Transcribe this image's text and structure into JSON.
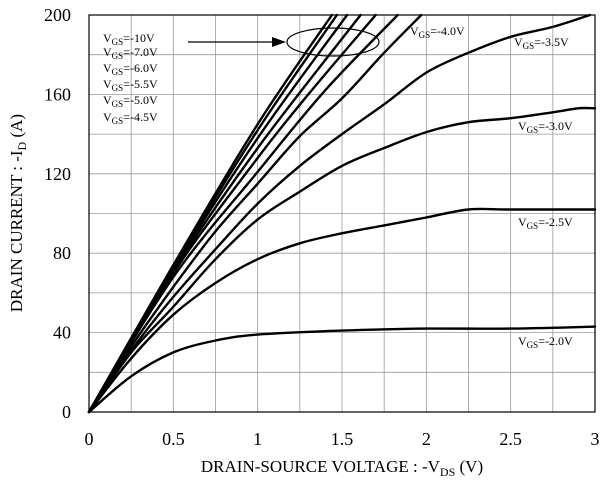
{
  "chart_data": {
    "type": "line",
    "title": "",
    "xlabel": "DRAIN-SOURCE VOLTAGE : -V",
    "xlabel_sub": "DS",
    "xlabel_unit": " (V)",
    "ylabel": "DRAIN CURRENT : -I",
    "ylabel_sub": "D",
    "ylabel_unit": " (A)",
    "xlim": [
      0,
      3
    ],
    "ylim": [
      0,
      200
    ],
    "x_ticks": [
      "0",
      "0.5",
      "1",
      "1.5",
      "2",
      "2.5",
      "3"
    ],
    "y_ticks": [
      "0",
      "40",
      "80",
      "120",
      "160",
      "200"
    ],
    "grid": true,
    "gridlines_x": [
      0.25,
      0.5,
      0.75,
      1,
      1.25,
      1.5,
      1.75,
      2,
      2.25,
      2.5,
      2.75
    ],
    "gridlines_y": [
      20,
      40,
      60,
      80,
      100,
      120,
      140,
      160,
      180
    ],
    "series": [
      {
        "name": "VGS=-10V",
        "x": [
          0,
          0.5,
          1,
          1.44
        ],
        "y": [
          0,
          74,
          145,
          200
        ]
      },
      {
        "name": "VGS=-7.0V",
        "x": [
          0,
          0.5,
          1,
          1.47
        ],
        "y": [
          0,
          73,
          142,
          200
        ]
      },
      {
        "name": "VGS=-6.0V",
        "x": [
          0,
          0.5,
          1,
          1.53
        ],
        "y": [
          0,
          72,
          138,
          200
        ]
      },
      {
        "name": "VGS=-5.5V",
        "x": [
          0,
          0.5,
          1,
          1.61
        ],
        "y": [
          0,
          71,
          133,
          200
        ]
      },
      {
        "name": "VGS=-5.0V",
        "x": [
          0,
          0.5,
          1,
          1.3,
          1.7
        ],
        "y": [
          0,
          70,
          128,
          160,
          200
        ]
      },
      {
        "name": "VGS=-4.5V",
        "x": [
          0,
          0.5,
          1,
          1.4,
          1.83
        ],
        "y": [
          0,
          68,
          121,
          162,
          200
        ]
      },
      {
        "name": "VGS=-4.0V",
        "x": [
          0,
          0.25,
          0.5,
          0.75,
          1,
          1.25,
          1.5,
          1.75,
          1.97
        ],
        "y": [
          0,
          33,
          63,
          91,
          115,
          139,
          158,
          181,
          200
        ]
      },
      {
        "name": "VGS=-3.5V",
        "x": [
          0,
          0.25,
          0.5,
          0.75,
          1,
          1.25,
          1.5,
          1.75,
          2,
          2.25,
          2.5,
          2.75,
          2.97
        ],
        "y": [
          0,
          31,
          58,
          82,
          105,
          124,
          140,
          155,
          171,
          181,
          189,
          194,
          200
        ]
      },
      {
        "name": "VGS=-3.0V",
        "x": [
          0,
          0.25,
          0.5,
          0.75,
          1,
          1.25,
          1.5,
          1.75,
          2,
          2.25,
          2.5,
          2.75,
          2.9,
          3
        ],
        "y": [
          0,
          30,
          53,
          77,
          97,
          111,
          124,
          133,
          141,
          146,
          148,
          151,
          153,
          153
        ]
      },
      {
        "name": "VGS=-2.5V",
        "x": [
          0,
          0.25,
          0.5,
          0.75,
          1,
          1.25,
          1.5,
          1.75,
          2,
          2.25,
          2.5,
          3
        ],
        "y": [
          0,
          27,
          49,
          65,
          77,
          85,
          90,
          94,
          98,
          102,
          102,
          102
        ]
      },
      {
        "name": "VGS=-2.0V",
        "x": [
          0,
          0.25,
          0.5,
          0.75,
          1,
          1.5,
          2,
          2.5,
          3
        ],
        "y": [
          0,
          18,
          30,
          36,
          39,
          41,
          42,
          42,
          43
        ]
      }
    ],
    "annotations": [
      {
        "text": "V",
        "sub": "GS",
        "value": "=-10V"
      },
      {
        "text": "V",
        "sub": "GS",
        "value": "=-7.0V"
      },
      {
        "text": "V",
        "sub": "GS",
        "value": "=-6.0V"
      },
      {
        "text": "V",
        "sub": "GS",
        "value": "=-5.5V"
      },
      {
        "text": "V",
        "sub": "GS",
        "value": "=-5.0V"
      },
      {
        "text": "V",
        "sub": "GS",
        "value": "=-4.5V"
      },
      {
        "text": "V",
        "sub": "GS",
        "value": "=-4.0V"
      },
      {
        "text": "V",
        "sub": "GS",
        "value": "=-3.5V"
      },
      {
        "text": "V",
        "sub": "GS",
        "value": "=-3.0V"
      },
      {
        "text": "V",
        "sub": "GS",
        "value": "=-2.5V"
      },
      {
        "text": "V",
        "sub": "GS",
        "value": "=-2.0V"
      }
    ],
    "colors": {
      "line": "#000000",
      "grid": "#9a9a9a",
      "axis": "#000000"
    }
  }
}
